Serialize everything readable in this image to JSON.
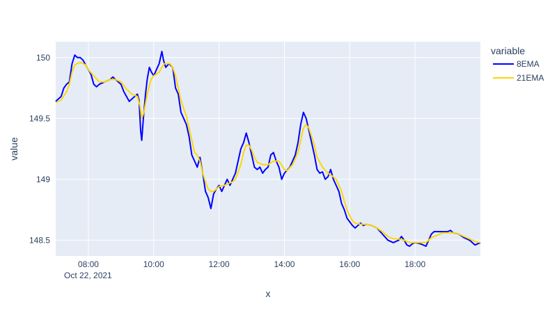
{
  "chart_data": {
    "type": "line",
    "title": "",
    "xlabel": "x",
    "ylabel": "value",
    "date_label": "Oct 22, 2021",
    "xlim": [
      "07:00",
      "20:00"
    ],
    "ylim": [
      148.37,
      150.13
    ],
    "x_ticks": [
      "08:00",
      "10:00",
      "12:00",
      "14:00",
      "16:00",
      "18:00"
    ],
    "y_ticks": [
      148.5,
      149,
      149.5,
      150
    ],
    "y_tick_labels": [
      "148.5",
      "149",
      "149.5",
      "150"
    ],
    "grid": true,
    "legend": {
      "title": "variable",
      "placement": "right"
    },
    "colors": {
      "plot_bg": "#e5ecf6",
      "grid": "#ffffff",
      "8EMA": "#0000ff",
      "21EMA": "#ffd700"
    },
    "series": [
      {
        "name": "8EMA",
        "points": [
          [
            "07:00",
            149.64
          ],
          [
            "07:10",
            149.68
          ],
          [
            "07:15",
            149.75
          ],
          [
            "07:20",
            149.78
          ],
          [
            "07:25",
            149.8
          ],
          [
            "07:30",
            149.95
          ],
          [
            "07:35",
            150.02
          ],
          [
            "07:40",
            150.0
          ],
          [
            "07:45",
            150.0
          ],
          [
            "07:50",
            149.98
          ],
          [
            "08:00",
            149.9
          ],
          [
            "08:05",
            149.86
          ],
          [
            "08:10",
            149.78
          ],
          [
            "08:15",
            149.76
          ],
          [
            "08:20",
            149.78
          ],
          [
            "08:30",
            149.8
          ],
          [
            "08:40",
            149.82
          ],
          [
            "08:45",
            149.84
          ],
          [
            "08:50",
            149.82
          ],
          [
            "09:00",
            149.78
          ],
          [
            "09:05",
            149.72
          ],
          [
            "09:10",
            149.68
          ],
          [
            "09:15",
            149.64
          ],
          [
            "09:20",
            149.66
          ],
          [
            "09:25",
            149.68
          ],
          [
            "09:30",
            149.7
          ],
          [
            "09:33",
            149.65
          ],
          [
            "09:36",
            149.4
          ],
          [
            "09:38",
            149.32
          ],
          [
            "09:41",
            149.5
          ],
          [
            "09:45",
            149.7
          ],
          [
            "09:48",
            149.82
          ],
          [
            "09:52",
            149.92
          ],
          [
            "09:56",
            149.88
          ],
          [
            "10:00",
            149.85
          ],
          [
            "10:05",
            149.9
          ],
          [
            "10:10",
            149.95
          ],
          [
            "10:15",
            150.05
          ],
          [
            "10:18",
            149.98
          ],
          [
            "10:22",
            149.92
          ],
          [
            "10:28",
            149.95
          ],
          [
            "10:35",
            149.92
          ],
          [
            "10:40",
            149.75
          ],
          [
            "10:45",
            149.7
          ],
          [
            "10:50",
            149.55
          ],
          [
            "10:55",
            149.5
          ],
          [
            "11:00",
            149.45
          ],
          [
            "11:05",
            149.35
          ],
          [
            "11:10",
            149.2
          ],
          [
            "11:15",
            149.15
          ],
          [
            "11:20",
            149.1
          ],
          [
            "11:25",
            149.18
          ],
          [
            "11:30",
            149.05
          ],
          [
            "11:35",
            148.9
          ],
          [
            "11:40",
            148.85
          ],
          [
            "11:45",
            148.76
          ],
          [
            "11:50",
            148.88
          ],
          [
            "11:55",
            148.92
          ],
          [
            "12:00",
            148.95
          ],
          [
            "12:05",
            148.9
          ],
          [
            "12:10",
            148.95
          ],
          [
            "12:15",
            149.0
          ],
          [
            "12:20",
            148.95
          ],
          [
            "12:25",
            149.0
          ],
          [
            "12:30",
            149.05
          ],
          [
            "12:35",
            149.15
          ],
          [
            "12:40",
            149.25
          ],
          [
            "12:45",
            149.3
          ],
          [
            "12:50",
            149.38
          ],
          [
            "12:55",
            149.3
          ],
          [
            "13:00",
            149.2
          ],
          [
            "13:05",
            149.1
          ],
          [
            "13:10",
            149.08
          ],
          [
            "13:15",
            149.1
          ],
          [
            "13:20",
            149.05
          ],
          [
            "13:25",
            149.08
          ],
          [
            "13:30",
            149.1
          ],
          [
            "13:35",
            149.2
          ],
          [
            "13:40",
            149.22
          ],
          [
            "13:45",
            149.15
          ],
          [
            "13:50",
            149.1
          ],
          [
            "13:55",
            149.0
          ],
          [
            "14:00",
            149.05
          ],
          [
            "14:10",
            149.1
          ],
          [
            "14:15",
            149.15
          ],
          [
            "14:20",
            149.2
          ],
          [
            "14:25",
            149.3
          ],
          [
            "14:30",
            149.45
          ],
          [
            "14:35",
            149.55
          ],
          [
            "14:40",
            149.5
          ],
          [
            "14:45",
            149.4
          ],
          [
            "14:50",
            149.3
          ],
          [
            "14:55",
            149.2
          ],
          [
            "15:00",
            149.08
          ],
          [
            "15:05",
            149.05
          ],
          [
            "15:10",
            149.06
          ],
          [
            "15:15",
            149.0
          ],
          [
            "15:20",
            149.02
          ],
          [
            "15:25",
            149.08
          ],
          [
            "15:30",
            149.0
          ],
          [
            "15:35",
            148.95
          ],
          [
            "15:40",
            148.9
          ],
          [
            "15:45",
            148.8
          ],
          [
            "15:50",
            148.75
          ],
          [
            "15:55",
            148.68
          ],
          [
            "16:00",
            148.65
          ],
          [
            "16:05",
            148.62
          ],
          [
            "16:10",
            148.6
          ],
          [
            "16:15",
            148.62
          ],
          [
            "16:20",
            148.64
          ],
          [
            "16:25",
            148.62
          ],
          [
            "16:30",
            148.63
          ],
          [
            "16:40",
            148.62
          ],
          [
            "16:50",
            148.6
          ],
          [
            "17:00",
            148.55
          ],
          [
            "17:10",
            148.5
          ],
          [
            "17:20",
            148.48
          ],
          [
            "17:30",
            148.5
          ],
          [
            "17:35",
            148.53
          ],
          [
            "17:40",
            148.5
          ],
          [
            "17:45",
            148.46
          ],
          [
            "17:50",
            148.45
          ],
          [
            "17:55",
            148.47
          ],
          [
            "18:00",
            148.48
          ],
          [
            "18:10",
            148.47
          ],
          [
            "18:20",
            148.45
          ],
          [
            "18:25",
            148.5
          ],
          [
            "18:30",
            148.55
          ],
          [
            "18:35",
            148.57
          ],
          [
            "18:40",
            148.57
          ],
          [
            "18:50",
            148.57
          ],
          [
            "19:00",
            148.57
          ],
          [
            "19:05",
            148.58
          ],
          [
            "19:10",
            148.56
          ],
          [
            "19:20",
            148.55
          ],
          [
            "19:30",
            148.52
          ],
          [
            "19:40",
            148.5
          ],
          [
            "19:45",
            148.48
          ],
          [
            "19:50",
            148.46
          ],
          [
            "20:00",
            148.48
          ]
        ]
      },
      {
        "name": "21EMA",
        "points": [
          [
            "07:00",
            149.63
          ],
          [
            "07:10",
            149.65
          ],
          [
            "07:20",
            149.72
          ],
          [
            "07:25",
            149.78
          ],
          [
            "07:30",
            149.88
          ],
          [
            "07:35",
            149.94
          ],
          [
            "07:45",
            149.96
          ],
          [
            "07:55",
            149.94
          ],
          [
            "08:00",
            149.9
          ],
          [
            "08:10",
            149.85
          ],
          [
            "08:20",
            149.8
          ],
          [
            "08:30",
            149.8
          ],
          [
            "08:40",
            149.82
          ],
          [
            "08:50",
            149.82
          ],
          [
            "09:00",
            149.8
          ],
          [
            "09:10",
            149.74
          ],
          [
            "09:20",
            149.7
          ],
          [
            "09:30",
            149.68
          ],
          [
            "09:35",
            149.6
          ],
          [
            "09:38",
            149.5
          ],
          [
            "09:42",
            149.55
          ],
          [
            "09:48",
            149.7
          ],
          [
            "09:55",
            149.82
          ],
          [
            "10:00",
            149.85
          ],
          [
            "10:10",
            149.88
          ],
          [
            "10:15",
            149.92
          ],
          [
            "10:20",
            149.95
          ],
          [
            "10:30",
            149.95
          ],
          [
            "10:35",
            149.92
          ],
          [
            "10:40",
            149.85
          ],
          [
            "10:45",
            149.75
          ],
          [
            "10:50",
            149.65
          ],
          [
            "10:55",
            149.58
          ],
          [
            "11:00",
            149.52
          ],
          [
            "11:05",
            149.42
          ],
          [
            "11:10",
            149.32
          ],
          [
            "11:15",
            149.22
          ],
          [
            "11:20",
            149.2
          ],
          [
            "11:25",
            149.15
          ],
          [
            "11:30",
            149.05
          ],
          [
            "11:35",
            148.98
          ],
          [
            "11:40",
            148.92
          ],
          [
            "11:45",
            148.9
          ],
          [
            "11:50",
            148.9
          ],
          [
            "11:55",
            148.92
          ],
          [
            "12:00",
            148.94
          ],
          [
            "12:10",
            148.95
          ],
          [
            "12:20",
            148.97
          ],
          [
            "12:25",
            148.98
          ],
          [
            "12:30",
            149.0
          ],
          [
            "12:40",
            149.12
          ],
          [
            "12:45",
            149.22
          ],
          [
            "12:50",
            149.28
          ],
          [
            "12:55",
            149.28
          ],
          [
            "13:00",
            149.24
          ],
          [
            "13:05",
            149.18
          ],
          [
            "13:10",
            149.14
          ],
          [
            "13:20",
            149.12
          ],
          [
            "13:30",
            149.12
          ],
          [
            "13:40",
            149.15
          ],
          [
            "13:50",
            149.15
          ],
          [
            "14:00",
            149.08
          ],
          [
            "14:05",
            149.07
          ],
          [
            "14:15",
            149.12
          ],
          [
            "14:25",
            149.22
          ],
          [
            "14:30",
            149.32
          ],
          [
            "14:35",
            149.42
          ],
          [
            "14:40",
            149.45
          ],
          [
            "14:45",
            149.42
          ],
          [
            "14:50",
            149.35
          ],
          [
            "14:55",
            149.28
          ],
          [
            "15:00",
            149.18
          ],
          [
            "15:10",
            149.1
          ],
          [
            "15:20",
            149.05
          ],
          [
            "15:30",
            149.02
          ],
          [
            "15:35",
            149.0
          ],
          [
            "15:40",
            148.95
          ],
          [
            "15:45",
            148.9
          ],
          [
            "15:50",
            148.82
          ],
          [
            "15:55",
            148.75
          ],
          [
            "16:00",
            148.7
          ],
          [
            "16:05",
            148.66
          ],
          [
            "16:10",
            148.64
          ],
          [
            "16:20",
            148.63
          ],
          [
            "16:30",
            148.63
          ],
          [
            "16:40",
            148.62
          ],
          [
            "16:50",
            148.6
          ],
          [
            "17:00",
            148.57
          ],
          [
            "17:10",
            148.53
          ],
          [
            "17:20",
            148.51
          ],
          [
            "17:30",
            148.51
          ],
          [
            "17:40",
            148.5
          ],
          [
            "17:50",
            148.48
          ],
          [
            "18:00",
            148.48
          ],
          [
            "18:10",
            148.48
          ],
          [
            "18:20",
            148.48
          ],
          [
            "18:30",
            148.52
          ],
          [
            "18:40",
            148.54
          ],
          [
            "18:50",
            148.56
          ],
          [
            "19:00",
            148.56
          ],
          [
            "19:10",
            148.56
          ],
          [
            "19:20",
            148.55
          ],
          [
            "19:30",
            148.53
          ],
          [
            "19:40",
            148.51
          ],
          [
            "19:50",
            148.49
          ],
          [
            "20:00",
            148.48
          ]
        ]
      }
    ]
  }
}
